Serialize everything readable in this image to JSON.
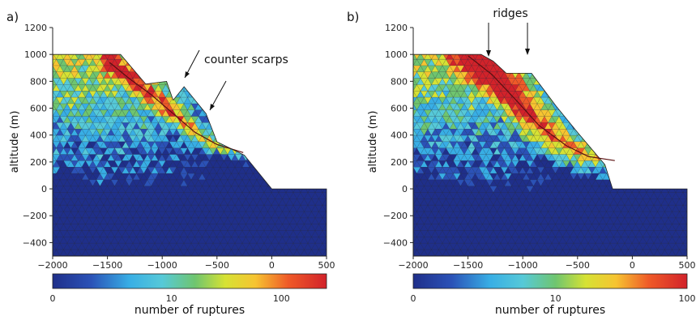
{
  "chart_data": [
    {
      "type": "heatmap",
      "panel_label": "a)",
      "ylabel": "altitude (m)",
      "xlim": [
        -2000,
        500
      ],
      "ylim": [
        -500,
        1200
      ],
      "x_ticks": [
        -2000,
        -1500,
        -1000,
        -500,
        0,
        500
      ],
      "y_ticks": [
        -400,
        -200,
        0,
        200,
        400,
        600,
        800,
        1000,
        1200
      ],
      "annotation": "counter scarps",
      "profile": [
        [
          -2000,
          1000
        ],
        [
          -1380,
          1000
        ],
        [
          -1150,
          780
        ],
        [
          -960,
          800
        ],
        [
          -900,
          660
        ],
        [
          -800,
          760
        ],
        [
          -600,
          560
        ],
        [
          -500,
          350
        ],
        [
          -250,
          250
        ],
        [
          0,
          0
        ],
        [
          500,
          0
        ],
        [
          500,
          -500
        ],
        [
          -2000,
          -500
        ]
      ],
      "rupture_zone": [
        [
          -1480,
          940
        ],
        [
          -1300,
          820
        ],
        [
          -1100,
          700
        ],
        [
          -900,
          560
        ],
        [
          -700,
          420
        ],
        [
          -500,
          330
        ],
        [
          -260,
          270
        ]
      ],
      "colorbar": {
        "scale": "log",
        "ticks": [
          0,
          10,
          100
        ],
        "max": 250,
        "label": "number of ruptures"
      }
    },
    {
      "type": "heatmap",
      "panel_label": "b)",
      "ylabel": "altitude (m)",
      "xlim": [
        -2000,
        500
      ],
      "ylim": [
        -500,
        1200
      ],
      "x_ticks": [
        -2000,
        -1500,
        -1000,
        -500,
        0,
        500
      ],
      "y_ticks": [
        -400,
        -200,
        0,
        200,
        400,
        600,
        800,
        1000,
        1200
      ],
      "annotation": "ridges",
      "profile": [
        [
          -2000,
          1000
        ],
        [
          -1380,
          1000
        ],
        [
          -1270,
          950
        ],
        [
          -1150,
          860
        ],
        [
          -920,
          860
        ],
        [
          -700,
          620
        ],
        [
          -500,
          420
        ],
        [
          -250,
          180
        ],
        [
          -180,
          0
        ],
        [
          500,
          0
        ],
        [
          500,
          -500
        ],
        [
          -2000,
          -500
        ]
      ],
      "rupture_zone": [
        [
          -1500,
          990
        ],
        [
          -1280,
          850
        ],
        [
          -1050,
          650
        ],
        [
          -850,
          470
        ],
        [
          -600,
          320
        ],
        [
          -400,
          240
        ],
        [
          -160,
          210
        ]
      ],
      "colorbar": {
        "scale": "log",
        "ticks": [
          0,
          10,
          100
        ],
        "max": 100,
        "label": "number of ruptures"
      }
    }
  ]
}
